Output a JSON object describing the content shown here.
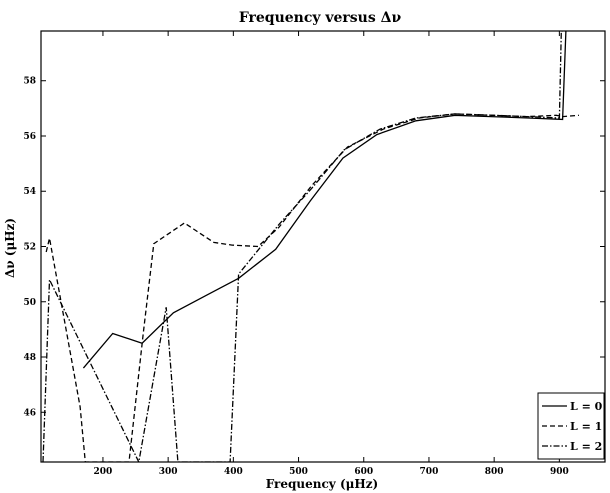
{
  "chart_data": {
    "type": "line",
    "title": "Frequency versus Δν",
    "xlabel": "Frequency (μHz)",
    "ylabel": "Δν (μHz)",
    "xlim": [
      105,
      970
    ],
    "ylim": [
      44.2,
      59.8
    ],
    "xticks": [
      200,
      300,
      400,
      500,
      600,
      700,
      800,
      900
    ],
    "yticks": [
      46,
      48,
      50,
      52,
      54,
      56,
      58
    ],
    "legend_position": "bottom-right",
    "grid": false,
    "series": [
      {
        "name": "L = 0",
        "style": "solid",
        "x": [
          170,
          215,
          260,
          308,
          360,
          408,
          465,
          518,
          568,
          620,
          680,
          740,
          795,
          852,
          905,
          910
        ],
        "y": [
          47.6,
          48.85,
          48.5,
          49.6,
          50.25,
          50.85,
          51.9,
          53.65,
          55.2,
          56.05,
          56.55,
          56.75,
          56.7,
          56.65,
          56.6,
          59.8
        ]
      },
      {
        "name": "L = 1",
        "style": "dashed",
        "x": [
          113,
          118,
          165,
          173,
          240,
          262,
          278,
          325,
          370,
          398,
          438,
          470,
          520,
          575,
          630,
          685,
          740,
          795,
          850,
          895,
          905,
          930
        ],
        "y": [
          51.8,
          52.3,
          46.2,
          44.2,
          44.2,
          48.9,
          52.1,
          52.85,
          52.15,
          52.05,
          52.0,
          52.7,
          54.2,
          55.6,
          56.25,
          56.65,
          56.8,
          56.75,
          56.7,
          56.75,
          56.7,
          56.75
        ]
      },
      {
        "name": "L = 2",
        "style": "dashdot",
        "x": [
          108,
          118,
          255,
          297,
          315,
          395,
          408,
          470,
          520,
          570,
          625,
          680,
          740,
          800,
          850,
          900,
          903,
          910
        ],
        "y": [
          44.2,
          50.8,
          44.2,
          49.8,
          44.2,
          44.2,
          51.0,
          52.8,
          54.1,
          55.5,
          56.25,
          56.65,
          56.8,
          56.75,
          56.7,
          56.65,
          59.8,
          59.8
        ]
      }
    ]
  }
}
